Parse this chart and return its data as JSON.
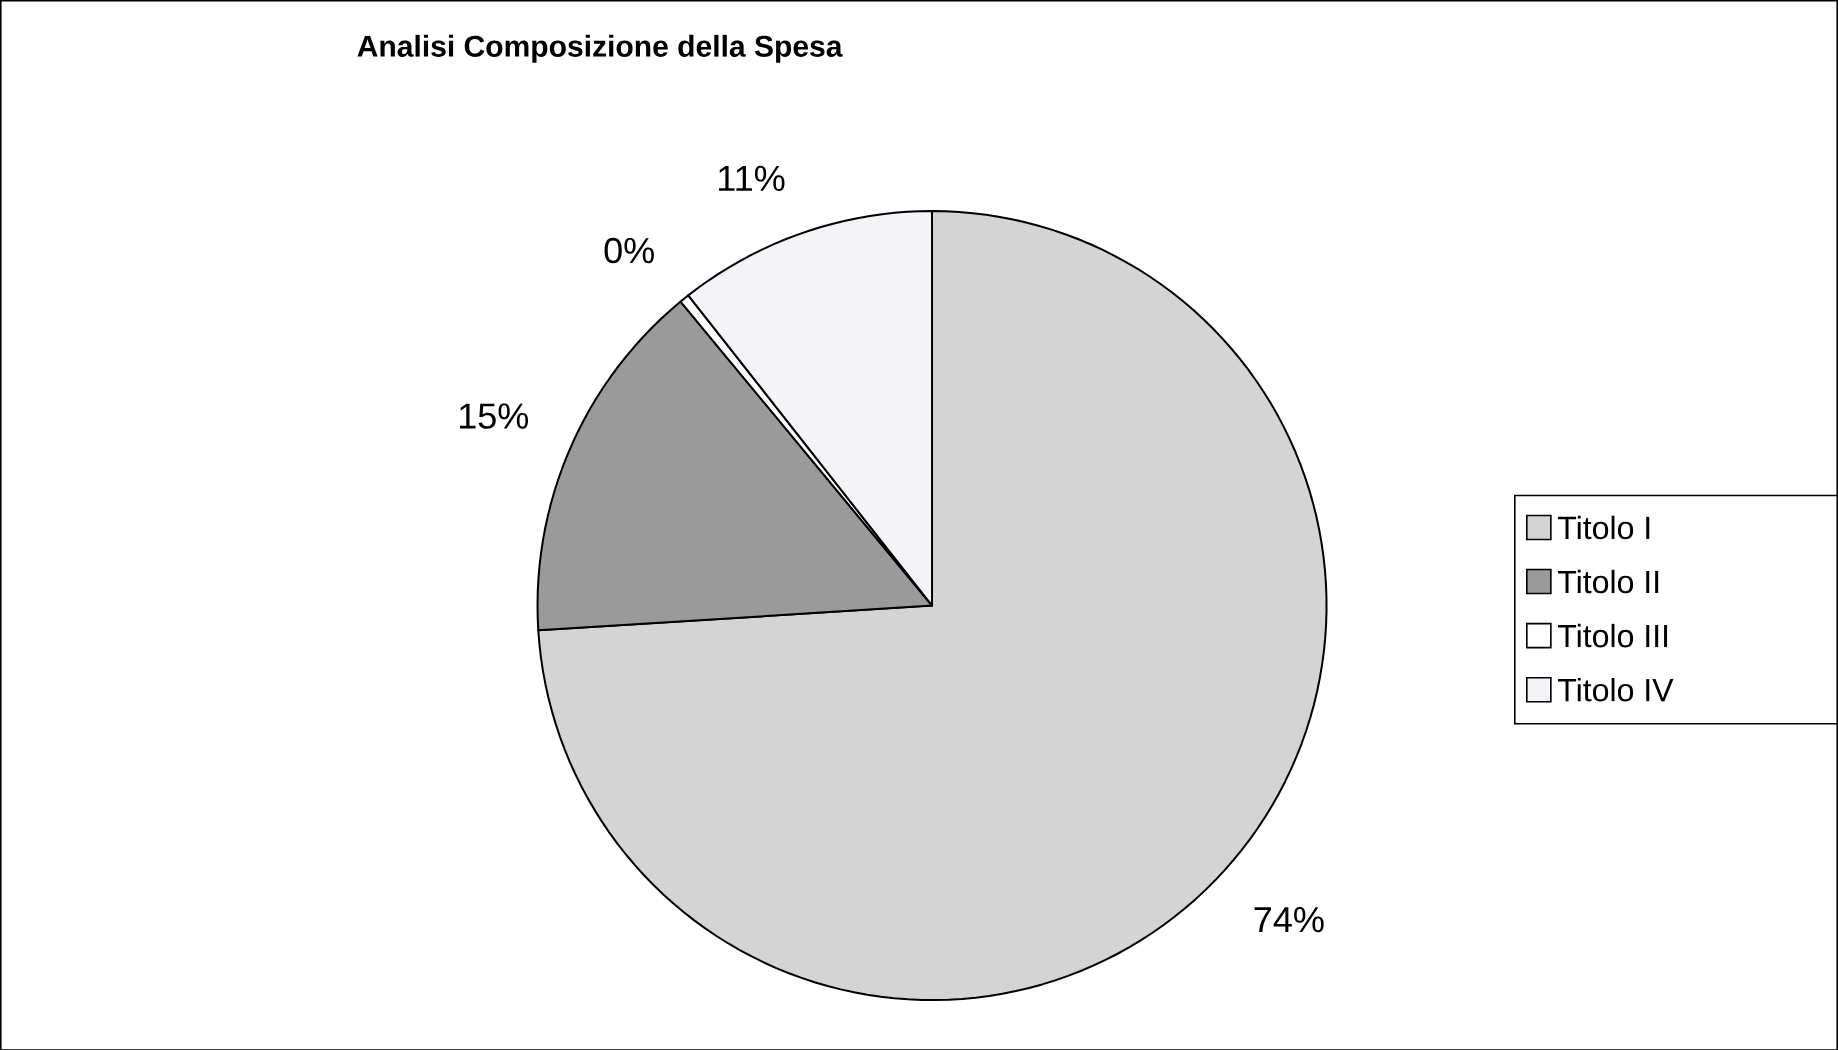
{
  "chart_data": {
    "type": "pie",
    "title": "Analisi Composizione della Spesa",
    "categories": [
      "Titolo I",
      "Titolo II",
      "Titolo III",
      "Titolo IV"
    ],
    "values": [
      74,
      15,
      0.4,
      10.6
    ],
    "colors": [
      "#d4d4d4",
      "#9a9a9a",
      "#ffffff",
      "#f4f4f8"
    ],
    "value_labels": [
      "74%",
      "15%",
      "0%",
      "11%"
    ],
    "legend": "right"
  }
}
